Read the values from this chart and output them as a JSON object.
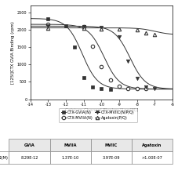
{
  "xlabel": "Calcium Channel Blocker [Log(M)]",
  "ylabel": "[125I]CTX GVIA Binding (cpm)",
  "xlim": [
    -14,
    -6
  ],
  "ylim": [
    0,
    2700
  ],
  "xticks": [
    -14,
    -13,
    -12,
    -11,
    -10,
    -9,
    -8,
    -7,
    -6
  ],
  "yticks": [
    0,
    500,
    1000,
    1500,
    2000,
    2500
  ],
  "series": {
    "GVIA": {
      "label": "CTX-GVIA(N)",
      "marker": "s",
      "filled": true,
      "Ki": -11.08,
      "top": 2320,
      "bottom": 290,
      "points_x": [
        -13.0,
        -12.0,
        -11.5,
        -11.0,
        -10.5,
        -10.0,
        -9.5
      ],
      "points_y": [
        2320,
        2100,
        1490,
        610,
        350,
        300,
        290
      ]
    },
    "MVIIA": {
      "label": "CTX-MVIIA(N)",
      "marker": "o",
      "filled": false,
      "Ki": -9.86,
      "top": 2150,
      "bottom": 290,
      "points_x": [
        -13.0,
        -11.0,
        -10.5,
        -10.0,
        -9.5,
        -9.0,
        -8.5,
        -8.0,
        -7.5
      ],
      "points_y": [
        2150,
        2080,
        1510,
        930,
        560,
        380,
        310,
        300,
        295
      ]
    },
    "MVIIC": {
      "label": "CTX-MVIIC(N/P/Q)",
      "marker": "v",
      "filled": true,
      "Ki": -8.4,
      "top": 2100,
      "bottom": 290,
      "points_x": [
        -13.0,
        -11.0,
        -10.0,
        -9.0,
        -8.5,
        -8.0,
        -7.5,
        -7.0
      ],
      "points_y": [
        2100,
        2090,
        2070,
        1800,
        1100,
        600,
        340,
        300
      ]
    },
    "Agatoxin": {
      "label": "Agatoxin(P/Q)",
      "marker": "^",
      "filled": false,
      "Ki": -7.0,
      "top": 2050,
      "bottom": 1850,
      "points_x": [
        -13.0,
        -11.0,
        -10.0,
        -9.0,
        -8.0,
        -7.5,
        -7.0
      ],
      "points_y": [
        2050,
        2040,
        2020,
        2010,
        2000,
        1910,
        1870
      ]
    }
  },
  "legend": [
    {
      "label": "CTX-GVIA(N)",
      "marker": "s",
      "filled": true
    },
    {
      "label": "CTX-MVIIA(N)",
      "marker": "o",
      "filled": false
    },
    {
      "label": "CTX-MVIIC(N/P/Q)",
      "marker": "v",
      "filled": true
    },
    {
      "label": "Agatoxin(P/Q)",
      "marker": "^",
      "filled": false
    }
  ],
  "table_col_labels": [
    "GVIA",
    "MVIIA",
    "MVIIC",
    "Agatoxin"
  ],
  "table_row_label": "Ki(M)",
  "table_values": [
    "8.29E-12",
    "1.37E-10",
    "3.97E-09",
    ">1.00E-07"
  ],
  "line_color": "#333333",
  "marker_color": "#333333"
}
